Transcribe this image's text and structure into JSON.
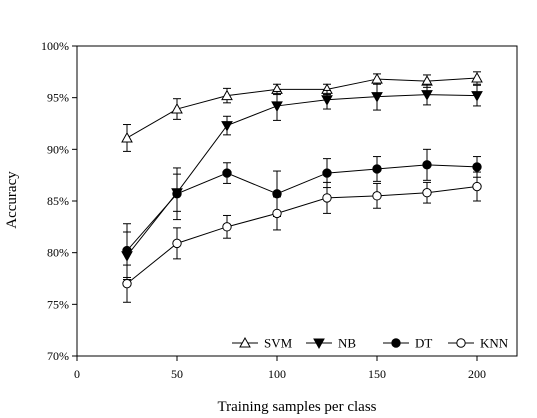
{
  "chart_data": {
    "type": "line",
    "xlabel": "Training samples per class",
    "ylabel": "Accuracy",
    "xlim": [
      0,
      220
    ],
    "ylim": [
      70,
      100
    ],
    "xticks": [
      0,
      50,
      100,
      150,
      200
    ],
    "yticks": [
      70,
      75,
      80,
      85,
      90,
      95,
      100
    ],
    "yticklabels": [
      "70%",
      "75%",
      "80%",
      "85%",
      "90%",
      "95%",
      "100%"
    ],
    "grid": false,
    "legend_position": "bottom-right",
    "x": [
      25,
      50,
      75,
      100,
      125,
      150,
      175,
      200
    ],
    "series": [
      {
        "name": "SVM",
        "marker": "triangle-up-open",
        "values": [
          91.1,
          93.9,
          95.2,
          95.8,
          95.8,
          96.8,
          96.6,
          96.9
        ],
        "errors": [
          1.3,
          1.0,
          0.7,
          0.5,
          0.5,
          0.5,
          0.6,
          0.6
        ]
      },
      {
        "name": "NB",
        "marker": "triangle-down-filled",
        "values": [
          79.7,
          85.8,
          92.3,
          94.2,
          94.8,
          95.1,
          95.3,
          95.2
        ],
        "errors": [
          2.3,
          1.8,
          0.9,
          1.4,
          0.9,
          1.3,
          1.0,
          1.0
        ]
      },
      {
        "name": "DT",
        "marker": "circle-filled",
        "values": [
          80.2,
          85.7,
          87.7,
          85.7,
          87.7,
          88.1,
          88.5,
          88.3
        ],
        "errors": [
          2.6,
          2.5,
          1.0,
          2.2,
          1.4,
          1.2,
          1.5,
          1.0
        ]
      },
      {
        "name": "KNN",
        "marker": "circle-open",
        "values": [
          77.0,
          80.9,
          82.5,
          83.8,
          85.3,
          85.5,
          85.8,
          86.4
        ],
        "errors": [
          1.8,
          1.5,
          1.1,
          1.6,
          1.5,
          1.2,
          1.0,
          1.4
        ]
      }
    ]
  }
}
